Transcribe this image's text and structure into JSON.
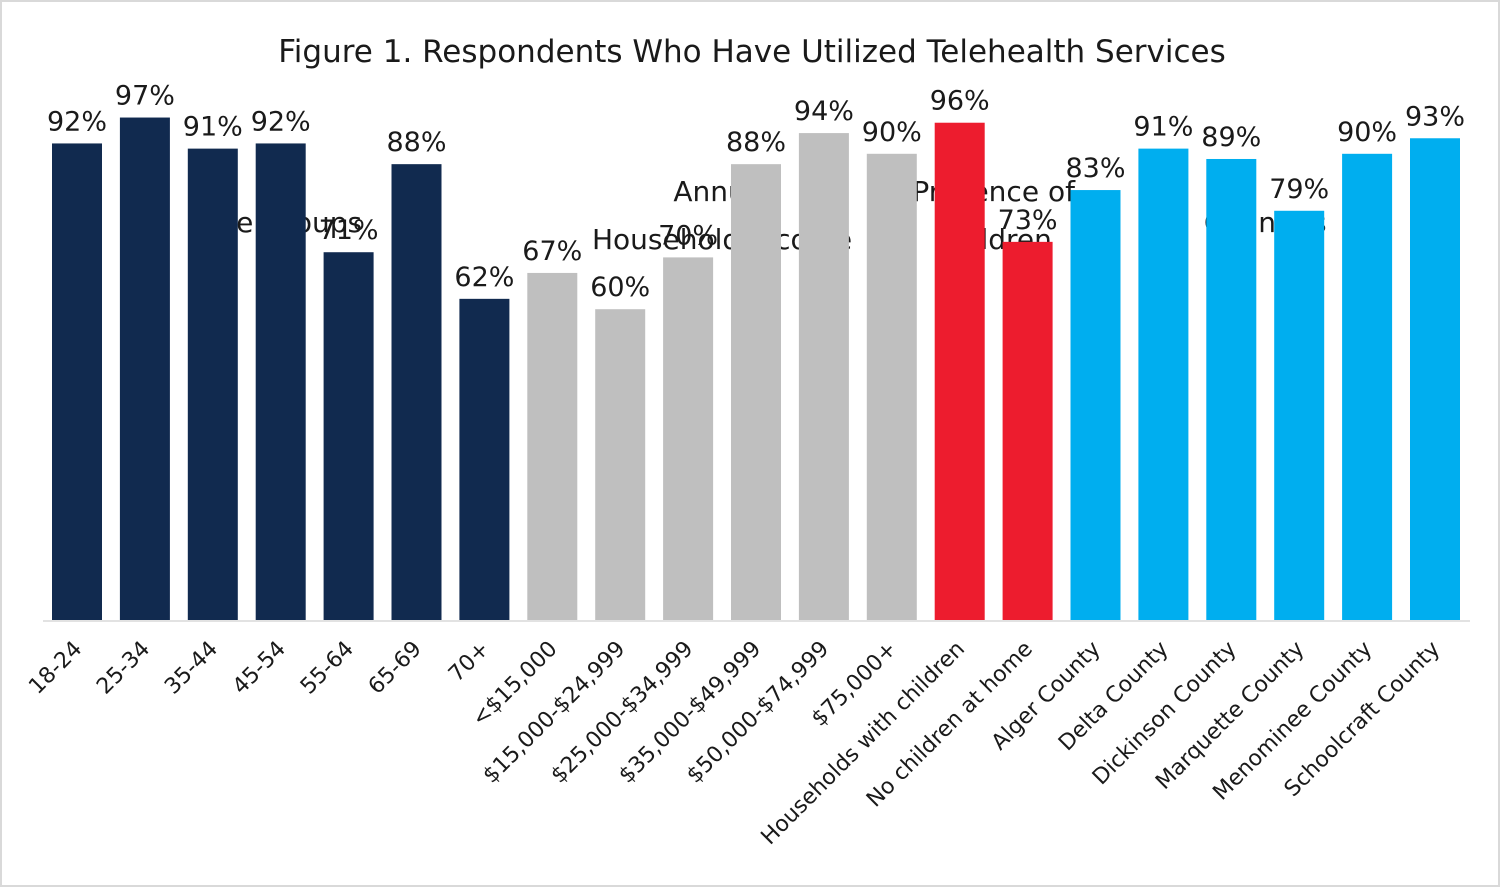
{
  "chart_data": {
    "type": "bar",
    "title": "Figure 1. Respondents Who Have Utilized Telehealth Services",
    "xlabel": "",
    "ylabel": "",
    "ylim": [
      0,
      100
    ],
    "grid": false,
    "legend": "none",
    "value_suffix": "%",
    "groups": [
      {
        "name": "Age Groups",
        "label_lines": [
          "Age Groups"
        ],
        "color": "#112a4f",
        "categories": [
          "18-24",
          "25-34",
          "35-44",
          "45-54",
          "55-64",
          "65-69",
          "70+"
        ],
        "values": [
          92,
          97,
          91,
          92,
          71,
          88,
          62
        ]
      },
      {
        "name": "Annual Household Income",
        "label_lines": [
          "Annual",
          "Household Income"
        ],
        "color": "#bfbfbf",
        "categories": [
          "<$15,000",
          "$15,000-$24,999",
          "$25,000-$34,999",
          "$35,000-$49,999",
          "$50,000-$74,999",
          "$75,000+"
        ],
        "values": [
          67,
          60,
          70,
          88,
          94,
          90
        ]
      },
      {
        "name": "Presence of Children",
        "label_lines": [
          "Presence of",
          "Children"
        ],
        "color": "#ed1c2e",
        "categories": [
          "Households with children",
          "No children at home"
        ],
        "values": [
          96,
          73
        ]
      },
      {
        "name": "Counties",
        "label_lines": [
          "Counties"
        ],
        "color": "#00aeef",
        "categories": [
          "Alger County",
          "Delta County",
          "Dickinson County",
          "Marquette County",
          "Menominee County",
          "Schoolcraft County"
        ],
        "values": [
          83,
          91,
          89,
          79,
          90,
          93
        ]
      }
    ]
  }
}
